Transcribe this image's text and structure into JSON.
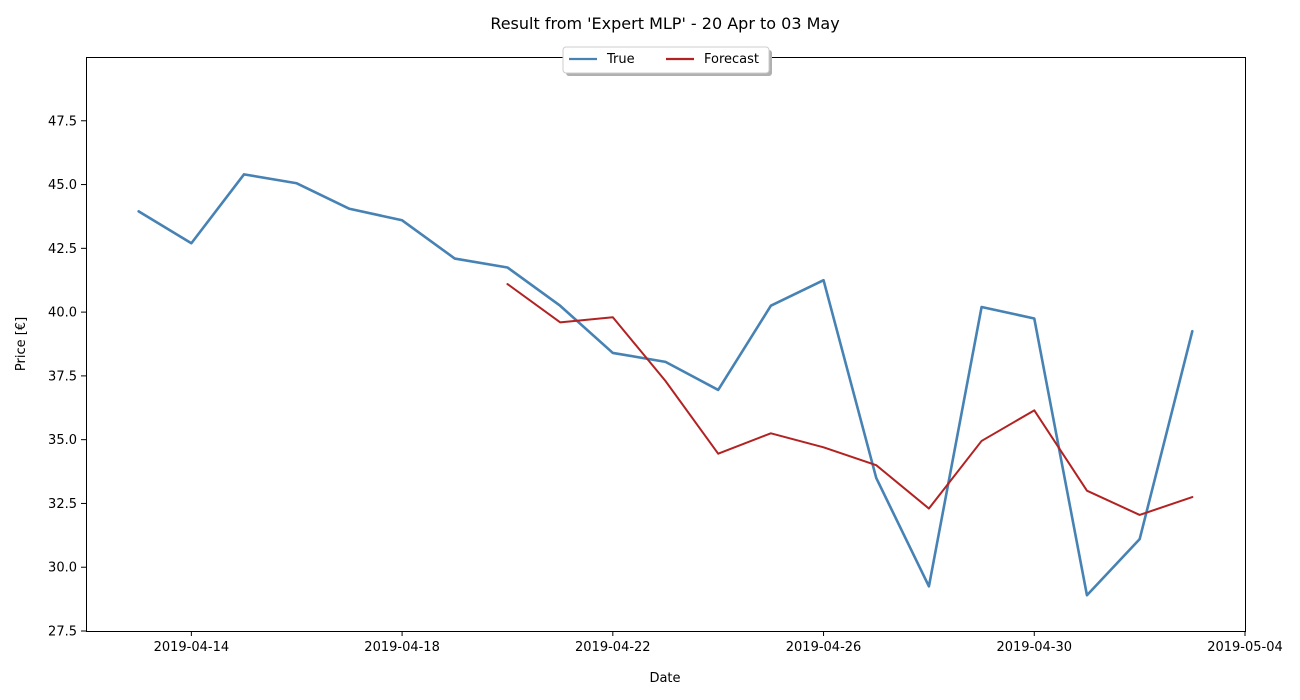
{
  "chart_data": {
    "type": "line",
    "title": "Result from 'Expert MLP' - 20 Apr to 03 May",
    "xlabel": "Date",
    "ylabel": "Price [€]",
    "xlim": [
      "2019-04-12",
      "2019-05-04"
    ],
    "ylim": [
      27.5,
      50.0
    ],
    "x_ticks": [
      "2019-04-14",
      "2019-04-18",
      "2019-04-22",
      "2019-04-26",
      "2019-04-30",
      "2019-05-04"
    ],
    "y_ticks": [
      27.5,
      30.0,
      32.5,
      35.0,
      37.5,
      40.0,
      42.5,
      45.0,
      47.5
    ],
    "y_tick_labels": [
      "27.5",
      "30.0",
      "32.5",
      "35.0",
      "37.5",
      "40.0",
      "42.5",
      "45.0",
      "47.5"
    ],
    "grid": false,
    "legend_position": "top-center",
    "series": [
      {
        "name": "True",
        "color": "#4682b4",
        "x": [
          "2019-04-13",
          "2019-04-14",
          "2019-04-15",
          "2019-04-16",
          "2019-04-17",
          "2019-04-18",
          "2019-04-19",
          "2019-04-20",
          "2019-04-21",
          "2019-04-22",
          "2019-04-23",
          "2019-04-24",
          "2019-04-25",
          "2019-04-26",
          "2019-04-27",
          "2019-04-28",
          "2019-04-29",
          "2019-04-30",
          "2019-05-01",
          "2019-05-02",
          "2019-05-03"
        ],
        "values": [
          43.95,
          42.7,
          45.4,
          45.05,
          44.05,
          43.6,
          42.1,
          41.75,
          40.25,
          38.4,
          38.05,
          36.95,
          40.25,
          41.25,
          33.5,
          29.25,
          40.2,
          39.75,
          28.9,
          31.1,
          39.25
        ]
      },
      {
        "name": "Forecast",
        "color": "#b22222",
        "x": [
          "2019-04-20",
          "2019-04-21",
          "2019-04-22",
          "2019-04-23",
          "2019-04-24",
          "2019-04-25",
          "2019-04-26",
          "2019-04-27",
          "2019-04-28",
          "2019-04-29",
          "2019-04-30",
          "2019-05-01",
          "2019-05-02",
          "2019-05-03"
        ],
        "values": [
          41.1,
          39.6,
          39.8,
          37.3,
          34.45,
          35.25,
          34.7,
          34.0,
          32.3,
          34.95,
          36.15,
          33.0,
          32.05,
          32.75
        ]
      }
    ]
  }
}
